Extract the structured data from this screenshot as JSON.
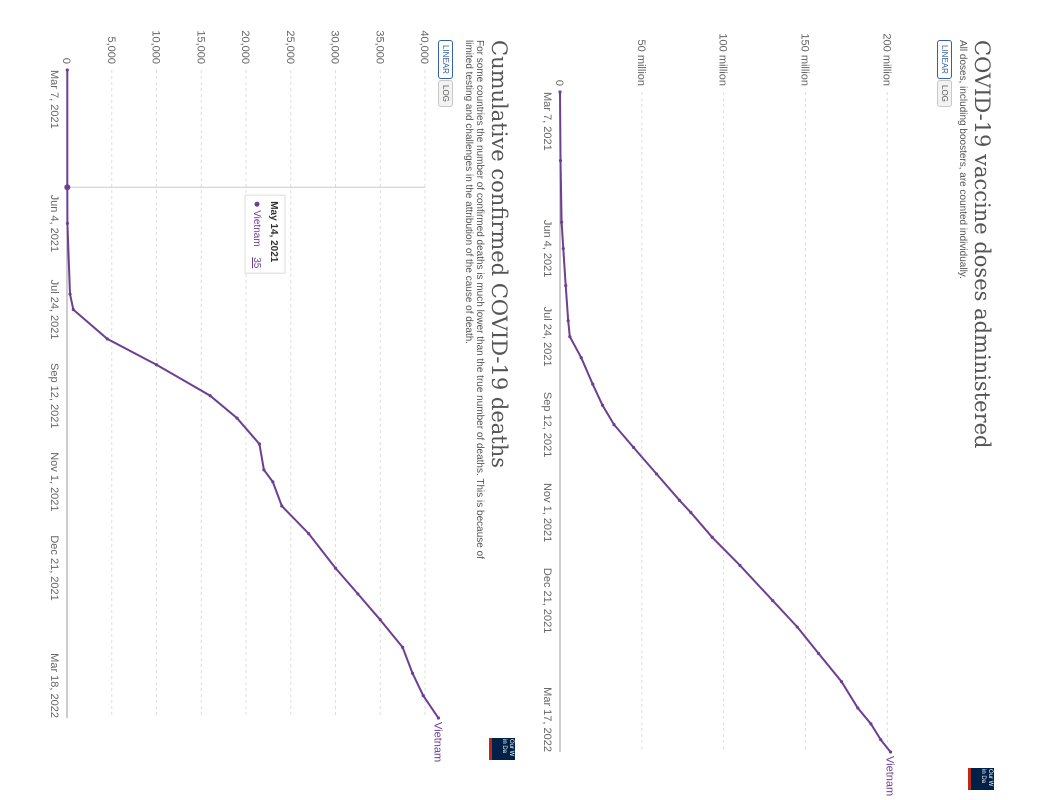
{
  "charts": [
    {
      "id": "doses",
      "title": "COVID-19 vaccine doses administered",
      "subtitle": "All doses, including boosters, are counted individually.",
      "buttons": [
        {
          "label": "LINEAR",
          "active": true
        },
        {
          "label": "LOG",
          "active": false
        }
      ],
      "logo_text": "Our W in Da",
      "series_label": "Vietnam",
      "yticks": [
        "0",
        "50 million",
        "100 million",
        "150 million",
        "200 million"
      ],
      "xticks": [
        "Mar 7, 2021",
        "Jun 4, 2021",
        "Jul 24, 2021",
        "Sep 12, 2021",
        "Nov 1, 2021",
        "Dec 21, 2021",
        "Mar 17, 2022"
      ]
    },
    {
      "id": "deaths",
      "title": "Cumulative confirmed COVID-19 deaths",
      "subtitle": "For some countries the number of confirmed deaths is much lower than the true number of deaths. This is because of limited testing and challenges in the attribution of the cause of death.",
      "buttons": [
        {
          "label": "LINEAR",
          "active": true
        },
        {
          "label": "LOG",
          "active": false
        }
      ],
      "logo_text": "Our W in Da",
      "series_label": "Vietnam",
      "yticks": [
        "0",
        "5,000",
        "10,000",
        "15,000",
        "20,000",
        "25,000",
        "30,000",
        "35,000",
        "40,000"
      ],
      "xticks": [
        "Mar 7, 2021",
        "Jun 4, 2021",
        "Jul 24, 2021",
        "Sep 12, 2021",
        "Nov 1, 2021",
        "Dec 21, 2021",
        "Mar 18, 2022"
      ],
      "tooltip": {
        "date": "May 14, 2021",
        "series": "Vietnam",
        "value": "35"
      }
    }
  ],
  "chart_data": [
    {
      "type": "line",
      "title": "COVID-19 vaccine doses administered",
      "ylabel": "",
      "xlabel": "",
      "ylim": [
        0,
        220000000
      ],
      "xlim": [
        "2021-03-07",
        "2022-03-17"
      ],
      "x": [
        "2021-03-07",
        "2021-04-15",
        "2021-05-20",
        "2021-06-04",
        "2021-06-25",
        "2021-07-15",
        "2021-07-24",
        "2021-08-05",
        "2021-08-20",
        "2021-09-01",
        "2021-09-12",
        "2021-09-25",
        "2021-10-10",
        "2021-10-25",
        "2021-11-01",
        "2021-11-15",
        "2021-12-01",
        "2021-12-21",
        "2022-01-05",
        "2022-01-20",
        "2022-02-05",
        "2022-02-20",
        "2022-03-01",
        "2022-03-10",
        "2022-03-17"
      ],
      "series": [
        {
          "name": "Vietnam",
          "values": [
            0,
            300000,
            1000000,
            2000000,
            3500000,
            5000000,
            6000000,
            13000000,
            20000000,
            26000000,
            33000000,
            45000000,
            59000000,
            73000000,
            80000000,
            93000000,
            110000000,
            130000000,
            145000000,
            158000000,
            172000000,
            182000000,
            190000000,
            196000000,
            202000000
          ]
        }
      ]
    },
    {
      "type": "line",
      "title": "Cumulative confirmed COVID-19 deaths",
      "ylabel": "",
      "xlabel": "",
      "ylim": [
        0,
        40000
      ],
      "xlim": [
        "2021-03-07",
        "2022-03-18"
      ],
      "x": [
        "2021-03-07",
        "2021-05-14",
        "2021-06-04",
        "2021-07-15",
        "2021-07-24",
        "2021-08-10",
        "2021-08-25",
        "2021-09-12",
        "2021-09-25",
        "2021-10-10",
        "2021-10-25",
        "2021-11-01",
        "2021-11-15",
        "2021-12-01",
        "2021-12-21",
        "2022-01-05",
        "2022-01-20",
        "2022-02-05",
        "2022-02-20",
        "2022-03-05",
        "2022-03-18"
      ],
      "series": [
        {
          "name": "Vietnam",
          "values": [
            35,
            35,
            47,
            340,
            700,
            4500,
            10000,
            16000,
            19000,
            21500,
            22000,
            23000,
            24000,
            27000,
            30000,
            32500,
            35000,
            37500,
            38600,
            39800,
            41500
          ]
        }
      ]
    }
  ]
}
